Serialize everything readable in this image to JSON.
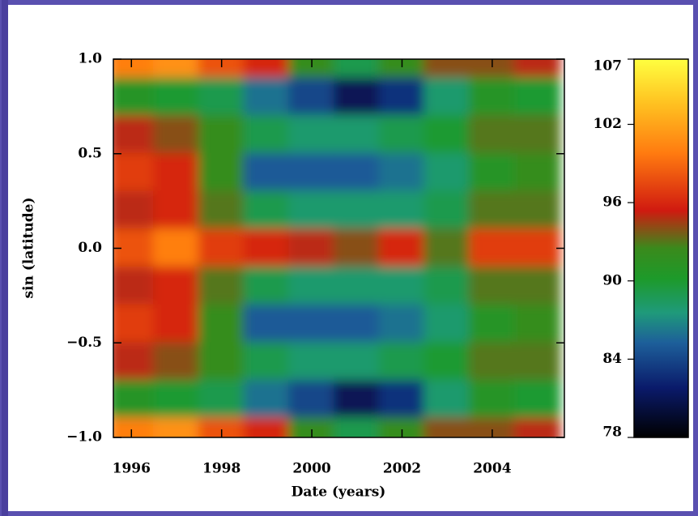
{
  "chart_data": {
    "type": "heatmap",
    "x_label": "Date (years)",
    "y_label": "sin (latitude)",
    "x": [
      1996,
      1997,
      1998,
      1999,
      2000,
      2001,
      2002,
      2003,
      2004,
      2005
    ],
    "y": [
      1.0,
      0.8,
      0.6,
      0.4,
      0.2,
      0.0,
      -0.2,
      -0.4,
      -0.6,
      -0.8,
      -1.0
    ],
    "z": [
      [
        100,
        101,
        98,
        96,
        92,
        89,
        92,
        94,
        94,
        95
      ],
      [
        91,
        90,
        89,
        86,
        84,
        81,
        83,
        88,
        91,
        90
      ],
      [
        95,
        94,
        92,
        89,
        88,
        88,
        89,
        90,
        93,
        93
      ],
      [
        97,
        96,
        92,
        85,
        85,
        85,
        86,
        88,
        91,
        92
      ],
      [
        95,
        96,
        93,
        89,
        88,
        88,
        88,
        89,
        93,
        93
      ],
      [
        98,
        100,
        97,
        96,
        95,
        94,
        96,
        93,
        97,
        97
      ],
      [
        95,
        96,
        93,
        89,
        88,
        88,
        88,
        89,
        93,
        93
      ],
      [
        97,
        96,
        92,
        85,
        85,
        85,
        86,
        88,
        91,
        92
      ],
      [
        95,
        94,
        92,
        89,
        88,
        88,
        89,
        90,
        93,
        93
      ],
      [
        91,
        90,
        89,
        86,
        84,
        81,
        83,
        88,
        91,
        90
      ],
      [
        100,
        101,
        98,
        96,
        92,
        89,
        92,
        94,
        94,
        95
      ]
    ],
    "xlim": [
      1995.6,
      2005.6
    ],
    "ylim": [
      -1.0,
      1.0
    ],
    "xticks": [
      1996,
      1998,
      2000,
      2002,
      2004
    ],
    "yticks": [
      {
        "value": 1.0,
        "label": "1.0"
      },
      {
        "value": 0.5,
        "label": "0.5"
      },
      {
        "value": 0.0,
        "label": "0.0"
      },
      {
        "value": -0.5,
        "label": "−0.5"
      },
      {
        "value": -1.0,
        "label": "−1.0"
      }
    ],
    "clim": [
      78,
      107
    ],
    "cticks": [
      107,
      102,
      96,
      90,
      84,
      78
    ]
  }
}
